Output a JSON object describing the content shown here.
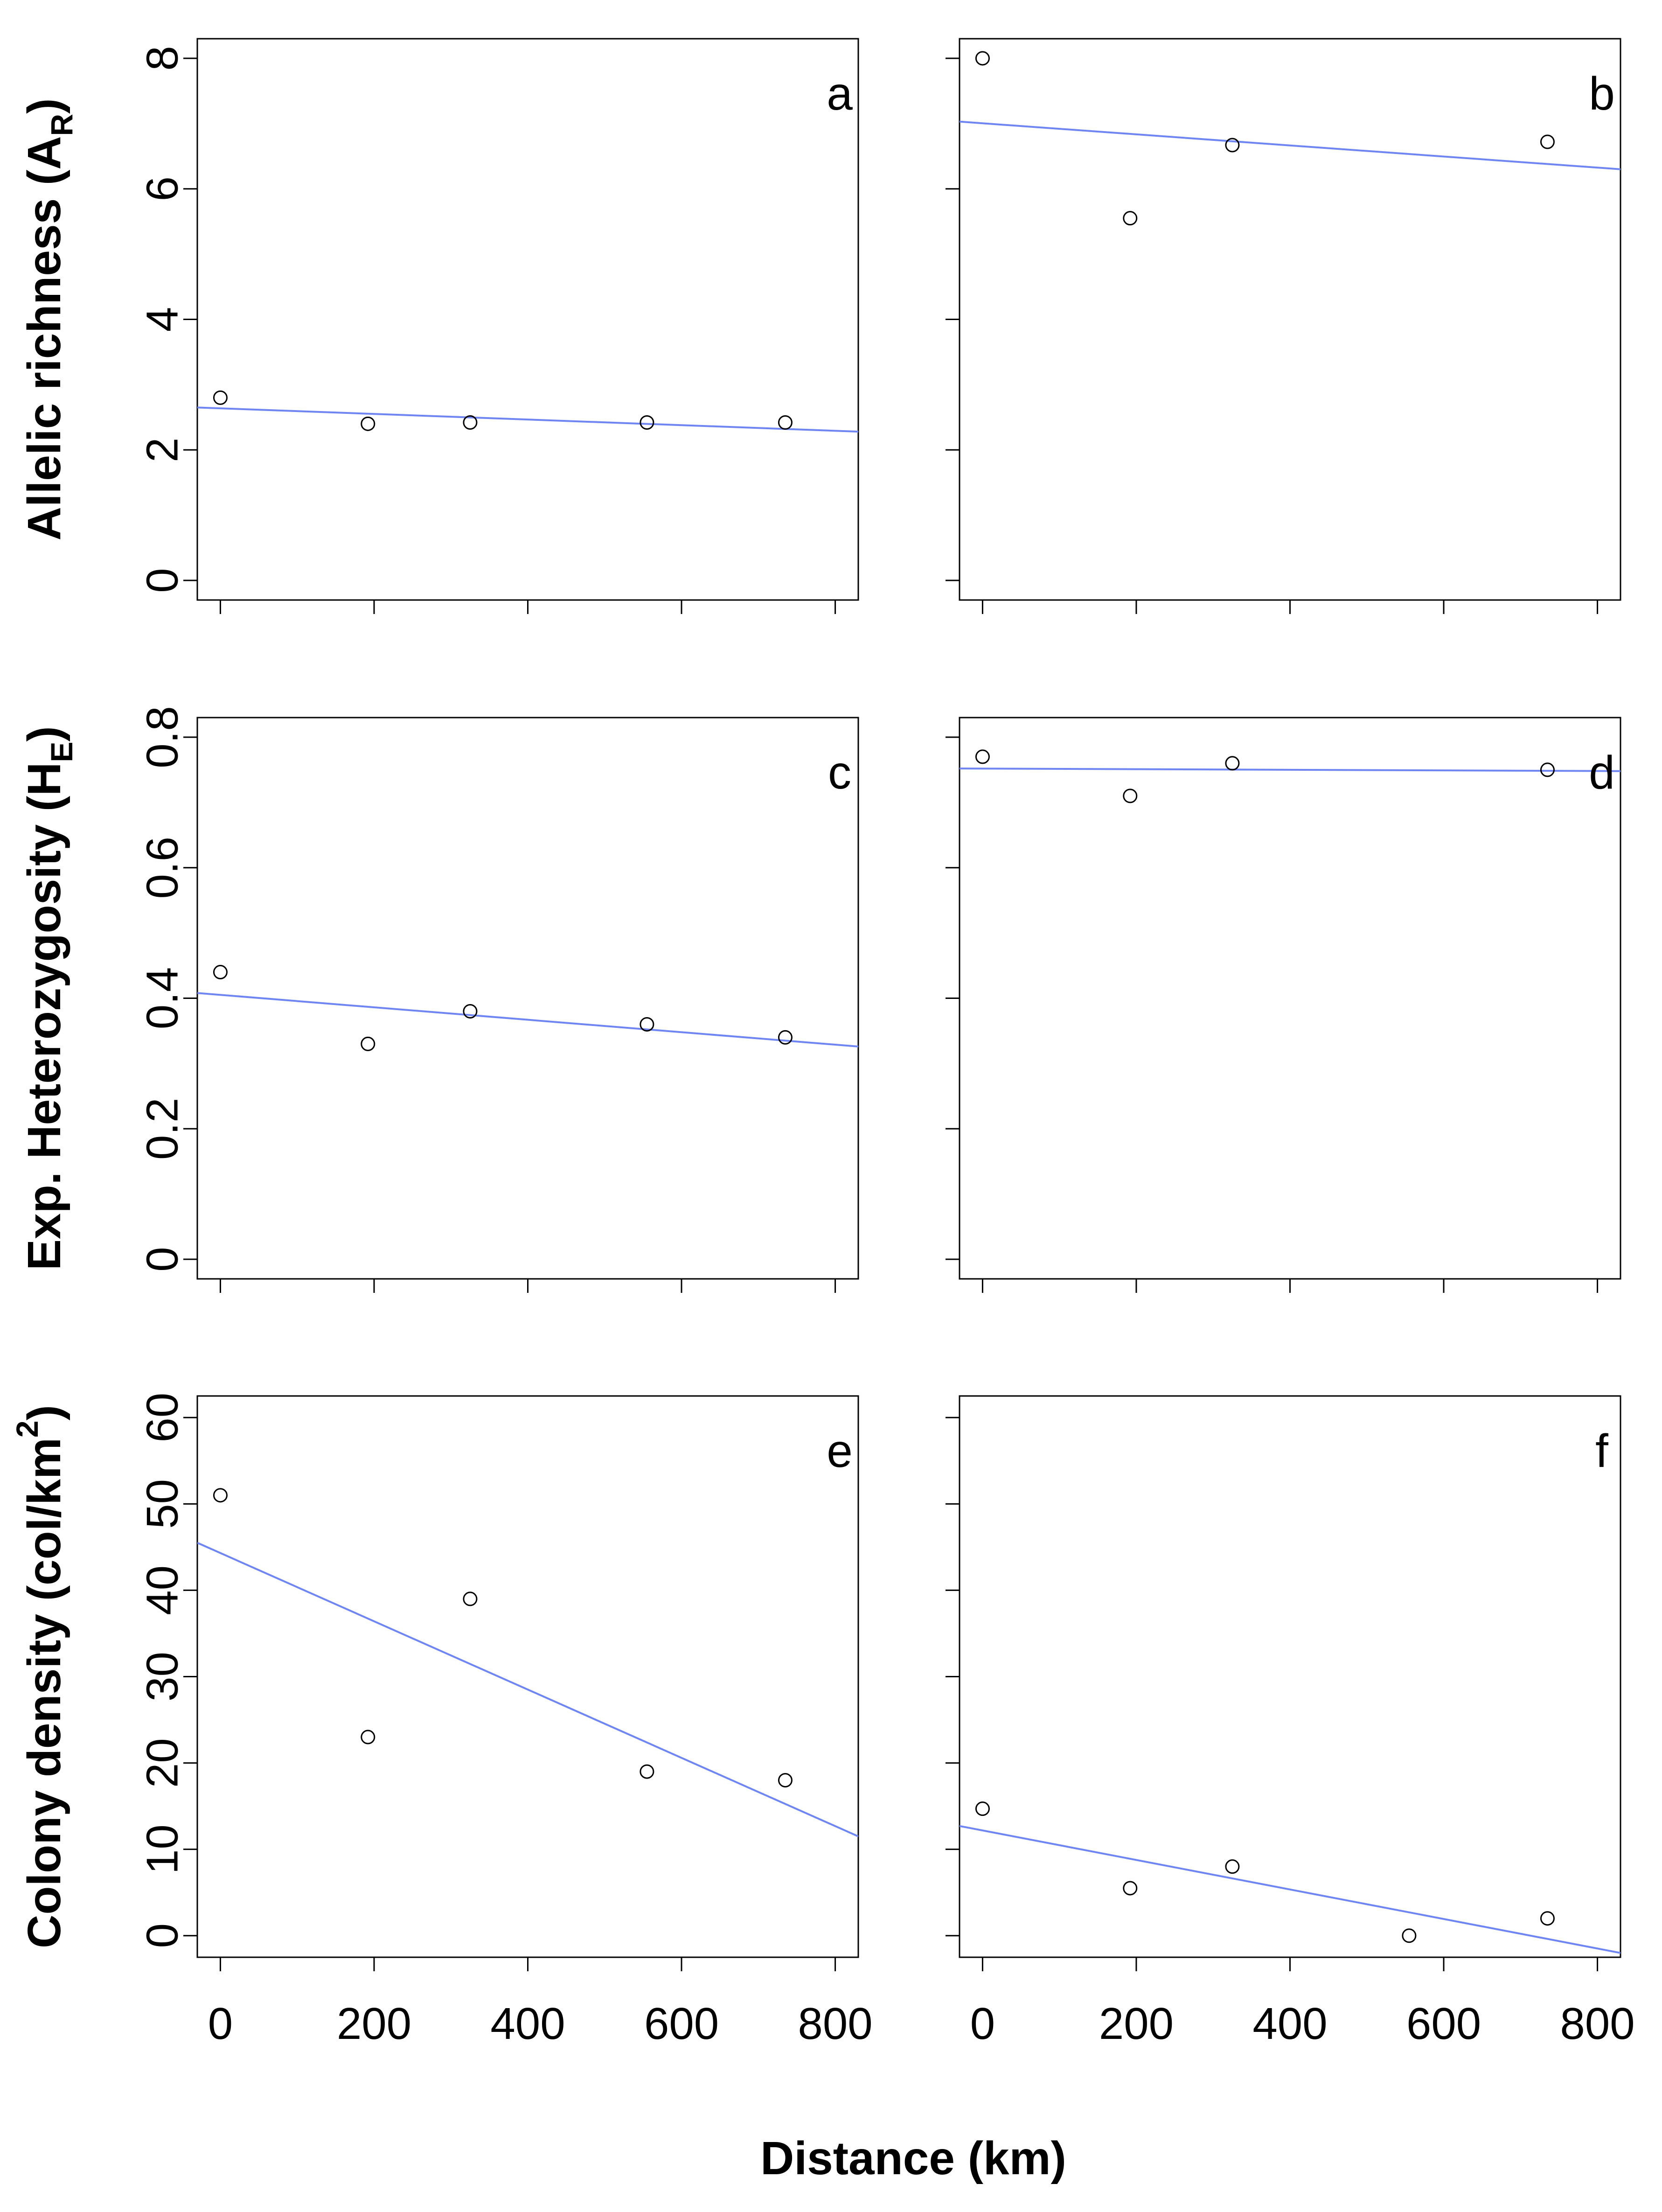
{
  "figure": {
    "xlabel": "Distance (km)",
    "row_labels": [
      {
        "main": "Allelic richness (A",
        "sub": "R",
        "sup": "",
        "tail": ")"
      },
      {
        "main": "Exp. Heterozygosity (H",
        "sub": "E",
        "sup": "",
        "tail": ")"
      },
      {
        "main": "Colony density (col/km",
        "sub": "",
        "sup": "2",
        "tail": ")"
      }
    ]
  },
  "colors": {
    "regression_line": "#6f86f2",
    "points": "#000000",
    "axes": "#000000"
  },
  "chart_data": [
    {
      "type": "scatter",
      "panel": "a",
      "row": 0,
      "col": 0,
      "xlim": [
        -30,
        830
      ],
      "ylim": [
        -0.3,
        8.3
      ],
      "yticks": [
        0,
        2,
        4,
        6,
        8
      ],
      "ytick_labels": [
        "0",
        "2",
        "4",
        "6",
        "8"
      ],
      "xticks": [
        0,
        200,
        400,
        600,
        800
      ],
      "xtick_labels": [],
      "x": [
        0,
        192,
        325,
        555,
        735
      ],
      "y": [
        2.8,
        2.4,
        2.42,
        2.42,
        2.42
      ],
      "fit": {
        "x": [
          -30,
          830
        ],
        "y": [
          2.65,
          2.28
        ]
      },
      "grid": false
    },
    {
      "type": "scatter",
      "panel": "b",
      "row": 0,
      "col": 1,
      "xlim": [
        -30,
        830
      ],
      "ylim": [
        -0.3,
        8.3
      ],
      "yticks": [
        0,
        2,
        4,
        6,
        8
      ],
      "ytick_labels": [],
      "xticks": [
        0,
        200,
        400,
        600,
        800
      ],
      "xtick_labels": [],
      "x": [
        0,
        192,
        325,
        735
      ],
      "y": [
        8.0,
        5.55,
        6.67,
        6.72
      ],
      "fit": {
        "x": [
          -30,
          830
        ],
        "y": [
          7.03,
          6.3
        ]
      },
      "grid": false
    },
    {
      "type": "scatter",
      "panel": "c",
      "row": 1,
      "col": 0,
      "xlim": [
        -30,
        830
      ],
      "ylim": [
        -0.03,
        0.83
      ],
      "yticks": [
        0,
        0.2,
        0.4,
        0.6,
        0.8
      ],
      "ytick_labels": [
        "0",
        "0.2",
        "0.4",
        "0.6",
        "0.8"
      ],
      "xticks": [
        0,
        200,
        400,
        600,
        800
      ],
      "xtick_labels": [],
      "x": [
        0,
        192,
        325,
        555,
        735
      ],
      "y": [
        0.44,
        0.33,
        0.38,
        0.36,
        0.34
      ],
      "fit": {
        "x": [
          -30,
          830
        ],
        "y": [
          0.408,
          0.326
        ]
      },
      "grid": false
    },
    {
      "type": "scatter",
      "panel": "d",
      "row": 1,
      "col": 1,
      "xlim": [
        -30,
        830
      ],
      "ylim": [
        -0.03,
        0.83
      ],
      "yticks": [
        0,
        0.2,
        0.4,
        0.6,
        0.8
      ],
      "ytick_labels": [],
      "xticks": [
        0,
        200,
        400,
        600,
        800
      ],
      "xtick_labels": [],
      "x": [
        0,
        192,
        325,
        735
      ],
      "y": [
        0.77,
        0.71,
        0.76,
        0.75
      ],
      "fit": {
        "x": [
          -30,
          830
        ],
        "y": [
          0.752,
          0.748
        ]
      },
      "grid": false
    },
    {
      "type": "scatter",
      "panel": "e",
      "row": 2,
      "col": 0,
      "xlim": [
        -30,
        830
      ],
      "ylim": [
        -2.5,
        62.5
      ],
      "yticks": [
        0,
        10,
        20,
        30,
        40,
        50,
        60
      ],
      "ytick_labels": [
        "0",
        "10",
        "20",
        "30",
        "40",
        "50",
        "60"
      ],
      "xticks": [
        0,
        200,
        400,
        600,
        800
      ],
      "xtick_labels": [
        "0",
        "200",
        "400",
        "600",
        "800"
      ],
      "x": [
        0,
        192,
        325,
        555,
        735
      ],
      "y": [
        51,
        23,
        39,
        19,
        18
      ],
      "fit": {
        "x": [
          -30,
          830
        ],
        "y": [
          45.5,
          11.5
        ]
      },
      "grid": false
    },
    {
      "type": "scatter",
      "panel": "f",
      "row": 2,
      "col": 1,
      "xlim": [
        -30,
        830
      ],
      "ylim": [
        -2.5,
        62.5
      ],
      "yticks": [
        0,
        10,
        20,
        30,
        40,
        50,
        60
      ],
      "ytick_labels": [],
      "xticks": [
        0,
        200,
        400,
        600,
        800
      ],
      "xtick_labels": [
        "0",
        "200",
        "400",
        "600",
        "800"
      ],
      "x": [
        0,
        192,
        325,
        555,
        735
      ],
      "y": [
        14.7,
        5.5,
        8,
        0,
        2
      ],
      "fit": {
        "x": [
          -30,
          830
        ],
        "y": [
          12.7,
          -2.0
        ]
      },
      "grid": false
    }
  ]
}
